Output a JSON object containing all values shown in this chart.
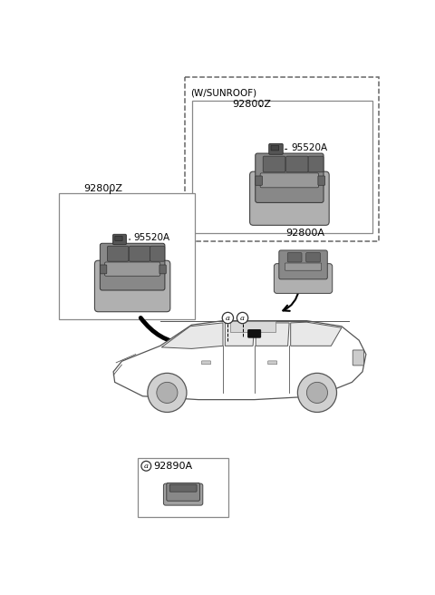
{
  "bg": "#ffffff",
  "labels": {
    "w_sunroof": "(W/SUNROOF)",
    "92800Z": "92800Z",
    "95520A": "95520A",
    "92800A": "92800A",
    "92890A": "92890A",
    "a": "a"
  },
  "font_size_large": 8.5,
  "font_size_small": 7.5,
  "part_color_dark": "#666666",
  "part_color_mid": "#888888",
  "part_color_light": "#aaaaaa",
  "part_color_base": "#999999",
  "connector_color": "#555555",
  "line_color": "#444444",
  "box_edge": "#555555"
}
